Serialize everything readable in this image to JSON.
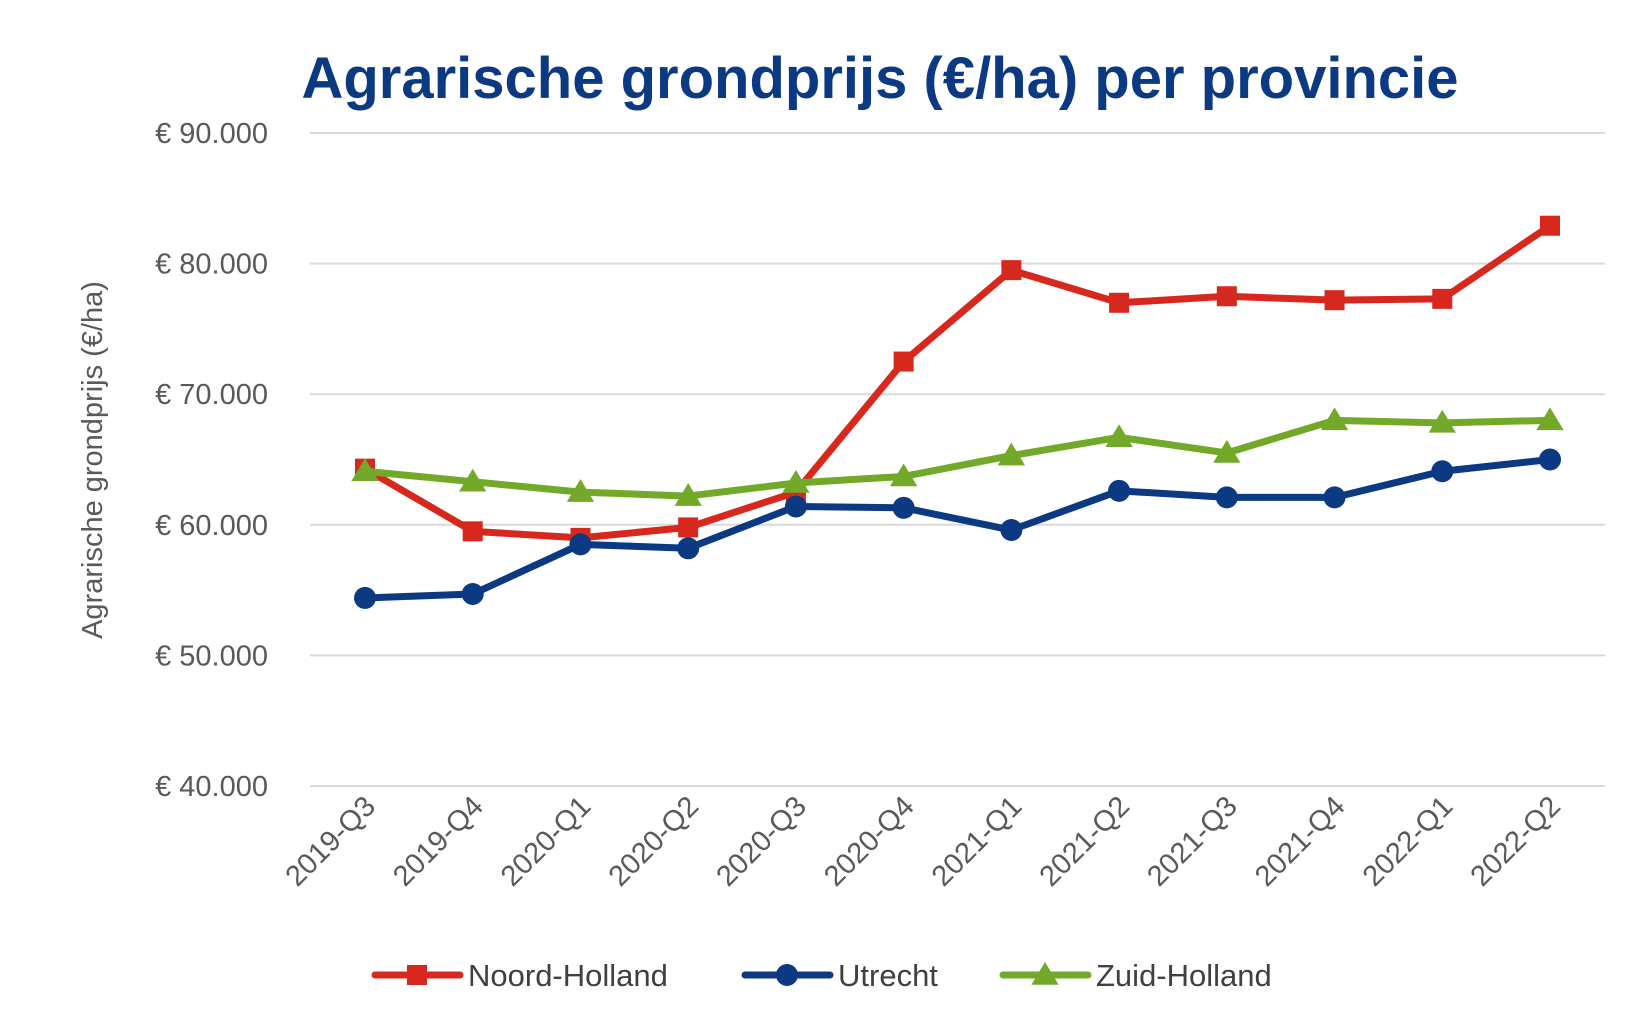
{
  "chart_data": {
    "type": "line",
    "title": "Agrarische grondprijs (€/ha) per provincie",
    "ylabel": "Agrarische grondprijs (€/ha)",
    "xlabel": "",
    "ylim": [
      40000,
      90000
    ],
    "yticks": [
      40000,
      50000,
      60000,
      70000,
      80000,
      90000
    ],
    "ytick_labels": [
      "€ 40.000",
      "€ 50.000",
      "€ 60.000",
      "€ 70.000",
      "€ 80.000",
      "€ 90.000"
    ],
    "categories": [
      "2019-Q3",
      "2019-Q4",
      "2020-Q1",
      "2020-Q2",
      "2020-Q3",
      "2020-Q4",
      "2021-Q1",
      "2021-Q2",
      "2021-Q3",
      "2021-Q4",
      "2022-Q1",
      "2022-Q2"
    ],
    "grid": true,
    "legend_position": "bottom",
    "series": [
      {
        "name": "Noord-Holland",
        "color": "#d7281e",
        "marker": "square",
        "values": [
          64300,
          59500,
          59000,
          59800,
          62500,
          72500,
          79500,
          77000,
          77500,
          77200,
          77300,
          82900
        ]
      },
      {
        "name": "Utrecht",
        "color": "#0b3a82",
        "marker": "circle",
        "values": [
          54400,
          54700,
          58500,
          58200,
          61400,
          61300,
          59600,
          62600,
          62100,
          62100,
          64100,
          65000
        ]
      },
      {
        "name": "Zuid-Holland",
        "color": "#72a929",
        "marker": "triangle",
        "values": [
          64100,
          63300,
          62500,
          62200,
          63200,
          63700,
          65300,
          66700,
          65500,
          68000,
          67800,
          68000
        ]
      }
    ]
  }
}
